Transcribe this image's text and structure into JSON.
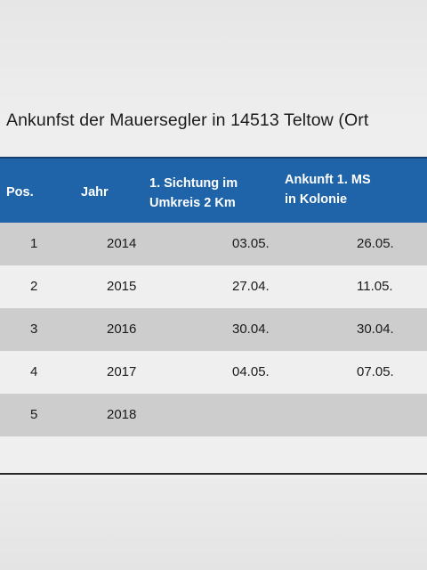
{
  "title": "Ankunfst der Mauersegler in 14513 Teltow (Ort",
  "table": {
    "header": {
      "pos": "Pos.",
      "jahr": "Jahr",
      "sichtung_line1": "1. Sichtung im",
      "sichtung_line2": "Umkreis  2 Km",
      "ankunft_line1": "Ankunft 1. MS",
      "ankunft_line2": "in  Kolonie"
    },
    "rows": [
      {
        "pos": "1",
        "jahr": "2014",
        "sichtung": "03.05.",
        "ankunft": "26.05."
      },
      {
        "pos": "2",
        "jahr": "2015",
        "sichtung": "27.04.",
        "ankunft": "11.05."
      },
      {
        "pos": "3",
        "jahr": "2016",
        "sichtung": "30.04.",
        "ankunft": "30.04."
      },
      {
        "pos": "4",
        "jahr": "2017",
        "sichtung": "04.05.",
        "ankunft": "07.05."
      },
      {
        "pos": "5",
        "jahr": "2018",
        "sichtung": "",
        "ankunft": ""
      }
    ]
  },
  "colors": {
    "header_bg": "#1f63a8",
    "header_text": "#ffffff",
    "row_dark": "#cdcdcd",
    "row_light": "#efefef"
  }
}
